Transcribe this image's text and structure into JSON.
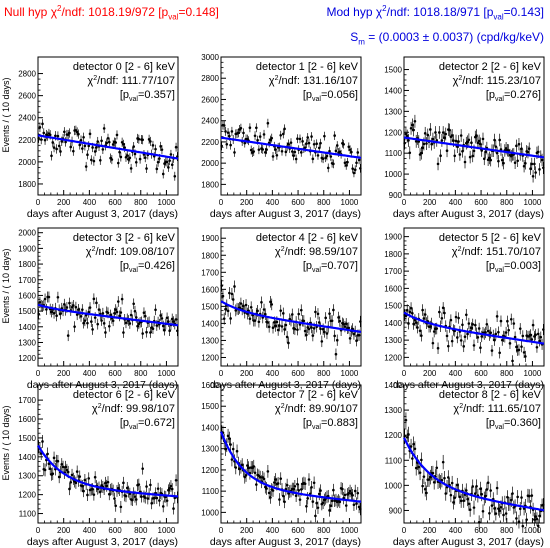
{
  "header": {
    "null_hyp": {
      "prefix": "Null hyp χ",
      "sup": "2",
      "mid": "/ndf: 1018.19/972 [p",
      "sub": "val",
      "suffix": "=0.148]"
    },
    "mod_hyp": {
      "prefix": "Mod hyp χ",
      "sup": "2",
      "mid": "/ndf: 1018.18/971 [p",
      "sub": "val",
      "suffix": "=0.143]"
    },
    "sm": {
      "prefix": "S",
      "sub": "m",
      "suffix": " = (0.0003 ± 0.0037) (cpd/kg/keV)"
    }
  },
  "colors": {
    "null_text": "#ff0000",
    "mod_text": "#0000dd",
    "fit_curve": "#0000ff",
    "data_points": "#000000"
  },
  "chart_data": [
    {
      "type": "scatter",
      "title": "detector 0 [2 - 6] keV",
      "chi2": "111.77/107",
      "pval": "=0.357]",
      "xlabel": "days after August 3, 2017 (days)",
      "ylabel": "Events / ( 10 days)",
      "xlim": [
        0,
        1090
      ],
      "ylim": [
        1700,
        2950
      ],
      "xticks": [
        0,
        200,
        400,
        600,
        800,
        1000
      ],
      "yticks": [
        1800,
        2000,
        2200,
        2400,
        2600,
        2800
      ],
      "fit": {
        "start": 2240,
        "end": 2030,
        "decay_amp": 0,
        "decay_tau": 300
      },
      "noise": 80
    },
    {
      "type": "scatter",
      "title": "detector 1 [2 - 6] keV",
      "chi2": "131.16/107",
      "pval": "=0.056]",
      "xlabel": "days after August 3, 2017 (days)",
      "ylabel": "",
      "xlim": [
        0,
        1090
      ],
      "ylim": [
        1700,
        3000
      ],
      "xticks": [
        0,
        200,
        400,
        600,
        800,
        1000
      ],
      "yticks": [
        1800,
        2000,
        2200,
        2400,
        2600,
        2800,
        3000
      ],
      "fit": {
        "start": 2240,
        "end": 2050,
        "decay_amp": 0,
        "decay_tau": 300
      },
      "noise": 80
    },
    {
      "type": "scatter",
      "title": "detector 2 [2 - 6] keV",
      "chi2": "115.23/107",
      "pval": "=0.276]",
      "xlabel": "days after August 3, 2017 (days)",
      "ylabel": "",
      "xlim": [
        0,
        1090
      ],
      "ylim": [
        900,
        1560
      ],
      "xticks": [
        0,
        200,
        400,
        600,
        800,
        1000
      ],
      "yticks": [
        900,
        1000,
        1100,
        1200,
        1300,
        1400,
        1500
      ],
      "fit": {
        "start": 1175,
        "end": 1080,
        "decay_amp": 0,
        "decay_tau": 300
      },
      "noise": 45
    },
    {
      "type": "scatter",
      "title": "detector 3 [2 - 6] keV",
      "chi2": "109.08/107",
      "pval": "=0.426]",
      "xlabel": "days after August 3, 2017 (days)",
      "ylabel": "Events / ( 10 days)",
      "xlim": [
        0,
        1090
      ],
      "ylim": [
        1150,
        2030
      ],
      "xticks": [
        0,
        200,
        400,
        600,
        800,
        1000
      ],
      "yticks": [
        1200,
        1300,
        1400,
        1500,
        1600,
        1700,
        1800,
        1900,
        2000
      ],
      "fit": {
        "start": 1520,
        "end": 1410,
        "decay_amp": 20,
        "decay_tau": 150
      },
      "noise": 45
    },
    {
      "type": "scatter",
      "title": "detector 4 [2 - 6] keV",
      "chi2": "98.59/107",
      "pval": "=0.707]",
      "xlabel": "days after August 3, 2017 (days)",
      "ylabel": "",
      "xlim": [
        0,
        1090
      ],
      "ylim": [
        1150,
        1960
      ],
      "xticks": [
        0,
        200,
        400,
        600,
        800,
        1000
      ],
      "yticks": [
        1200,
        1300,
        1400,
        1500,
        1600,
        1700,
        1800,
        1900
      ],
      "fit": {
        "start": 1470,
        "end": 1350,
        "decay_amp": 60,
        "decay_tau": 180
      },
      "noise": 45
    },
    {
      "type": "scatter",
      "title": "detector 5 [2 - 6] keV",
      "chi2": "151.70/107",
      "pval": "=0.003]",
      "xlabel": "days after August 3, 2017 (days)",
      "ylabel": "",
      "xlim": [
        0,
        1090
      ],
      "ylim": [
        1150,
        1950
      ],
      "xticks": [
        0,
        200,
        400,
        600,
        800,
        1000
      ],
      "yticks": [
        1200,
        1300,
        1400,
        1500,
        1600,
        1700,
        1800,
        1900
      ],
      "fit": {
        "start": 1400,
        "end": 1280,
        "decay_amp": 60,
        "decay_tau": 180
      },
      "noise": 50
    },
    {
      "type": "scatter",
      "title": "detector 6 [2 - 6] keV",
      "chi2": "99.98/107",
      "pval": "=0.672]",
      "xlabel": "days after August 3, 2017 (days)",
      "ylabel": "Events / ( 10 days)",
      "xlim": [
        0,
        1090
      ],
      "ylim": [
        1050,
        1780
      ],
      "xticks": [
        0,
        200,
        400,
        600,
        800,
        1000
      ],
      "yticks": [
        1100,
        1200,
        1300,
        1400,
        1500,
        1600,
        1700
      ],
      "fit": {
        "start": 1240,
        "end": 1190,
        "decay_amp": 220,
        "decay_tau": 200
      },
      "noise": 40
    },
    {
      "type": "scatter",
      "title": "detector 7 [2 - 6] keV",
      "chi2": "89.90/107",
      "pval": "=0.883]",
      "xlabel": "days after August 3, 2017 (days)",
      "ylabel": "",
      "xlim": [
        0,
        1090
      ],
      "ylim": [
        950,
        1600
      ],
      "xticks": [
        0,
        200,
        400,
        600,
        800,
        1000
      ],
      "yticks": [
        1000,
        1100,
        1200,
        1300,
        1400,
        1500,
        1600
      ],
      "fit": {
        "start": 1120,
        "end": 1050,
        "decay_amp": 260,
        "decay_tau": 170
      },
      "noise": 35
    },
    {
      "type": "scatter",
      "title": "detector 8 [2 - 6] keV",
      "chi2": "111.65/107",
      "pval": "=0.360]",
      "xlabel": "days after August 3, 2017 (days)",
      "ylabel": "",
      "xlim": [
        0,
        1090
      ],
      "ylim": [
        850,
        1400
      ],
      "xticks": [
        0,
        200,
        400,
        600,
        800,
        1000
      ],
      "yticks": [
        900,
        1000,
        1100,
        1200,
        1300,
        1400
      ],
      "fit": {
        "start": 990,
        "end": 900,
        "decay_amp": 200,
        "decay_tau": 200
      },
      "noise": 35
    }
  ]
}
